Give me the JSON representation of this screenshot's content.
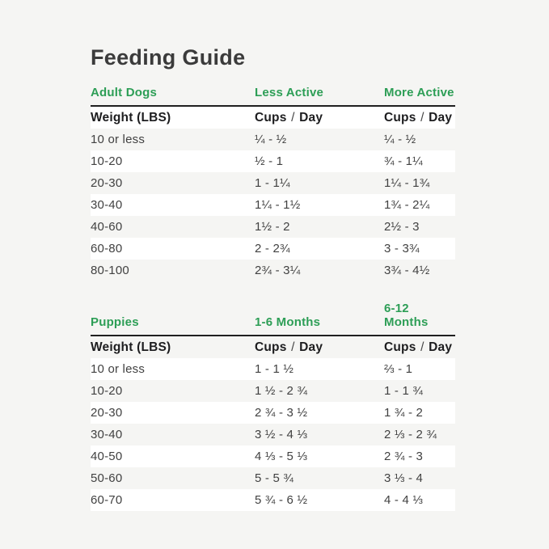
{
  "title": "Feeding Guide",
  "colors": {
    "accent_green": "#2d9e56",
    "page_background": "#f5f5f3",
    "row_white": "#ffffff",
    "rule_dark": "#202020"
  },
  "tables": [
    {
      "section_title": "Adult Dogs",
      "col2_label": "Less Active",
      "col3_label": "More Active",
      "header": {
        "weight": "Weight (LBS)",
        "cups": "Cups",
        "slash": "/",
        "day": "Day"
      },
      "rows": [
        {
          "weight": "10 or less",
          "col2": "¼ - ½",
          "col3": "¼ - ½"
        },
        {
          "weight": "10-20",
          "col2": "½ - 1",
          "col3": "¾ - 1¼"
        },
        {
          "weight": "20-30",
          "col2": "1 - 1¼",
          "col3": "1¼ - 1¾"
        },
        {
          "weight": "30-40",
          "col2": "1¼ - 1½",
          "col3": "1¾ - 2¼"
        },
        {
          "weight": "40-60",
          "col2": "1½ - 2",
          "col3": "2½ - 3"
        },
        {
          "weight": "60-80",
          "col2": "2 - 2¾",
          "col3": "3 - 3¾"
        },
        {
          "weight": "80-100",
          "col2": "2¾ - 3¼",
          "col3": "3¾ - 4½"
        }
      ]
    },
    {
      "section_title": "Puppies",
      "col2_label": "1-6 Months",
      "col3_label": "6-12 Months",
      "header": {
        "weight": "Weight (LBS)",
        "cups": "Cups",
        "slash": "/",
        "day": "Day"
      },
      "rows": [
        {
          "weight": "10 or less",
          "col2": "1 - 1 ½",
          "col3": "⅔ - 1"
        },
        {
          "weight": "10-20",
          "col2": "1 ½ - 2 ¾",
          "col3": "1 - 1 ¾"
        },
        {
          "weight": "20-30",
          "col2": "2 ¾ - 3 ½",
          "col3": "1 ¾ - 2"
        },
        {
          "weight": "30-40",
          "col2": "3 ½ - 4 ⅓",
          "col3": "2 ⅓ - 2 ¾"
        },
        {
          "weight": "40-50",
          "col2": "4 ⅓ - 5 ⅓",
          "col3": "2 ¾ - 3"
        },
        {
          "weight": "50-60",
          "col2": "5 - 5 ¾",
          "col3": "3 ⅓ - 4"
        },
        {
          "weight": "60-70",
          "col2": "5 ¾ - 6 ½",
          "col3": "4 - 4 ⅓"
        }
      ]
    }
  ]
}
